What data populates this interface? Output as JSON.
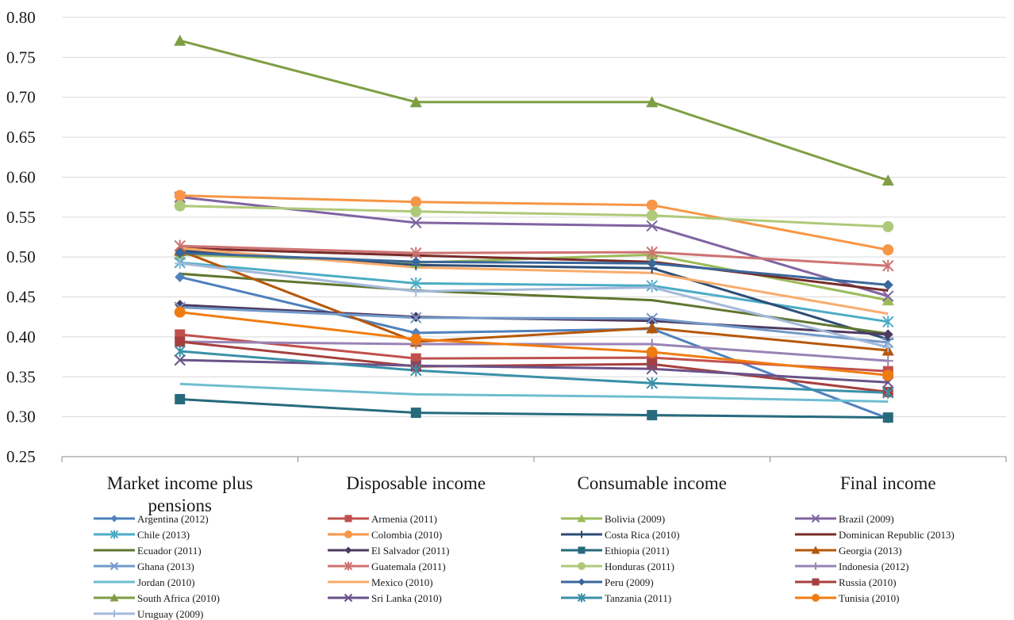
{
  "chart_data": {
    "type": "line",
    "title": "",
    "xlabel": "",
    "ylabel": "",
    "ylim": [
      0.25,
      0.8
    ],
    "yticks": [
      "0.25",
      "0.30",
      "0.35",
      "0.40",
      "0.45",
      "0.50",
      "0.55",
      "0.60",
      "0.65",
      "0.70",
      "0.75",
      "0.80"
    ],
    "categories": [
      "Market income plus pensions",
      "Disposable income",
      "Consumable income",
      "Final income"
    ],
    "grid": "horizontal",
    "legend_position": "bottom",
    "series": [
      {
        "name": "Argentina (2012)",
        "color": "#4f81bd",
        "marker": "diamond",
        "values": [
          0.475,
          0.405,
          0.41,
          0.298
        ]
      },
      {
        "name": "Armenia (2011)",
        "color": "#c0504d",
        "marker": "square",
        "values": [
          0.403,
          0.373,
          0.374,
          0.357
        ]
      },
      {
        "name": "Bolivia (2009)",
        "color": "#9bbb59",
        "marker": "triangle",
        "values": [
          0.503,
          0.493,
          0.503,
          0.446
        ]
      },
      {
        "name": "Brazil (2009)",
        "color": "#8064a2",
        "marker": "x",
        "values": [
          0.575,
          0.543,
          0.539,
          0.451
        ]
      },
      {
        "name": "Chile (2013)",
        "color": "#4bacc6",
        "marker": "star",
        "values": [
          0.493,
          0.467,
          0.464,
          0.419
        ]
      },
      {
        "name": "Colombia (2010)",
        "color": "#f79646",
        "marker": "circle",
        "values": [
          0.577,
          0.569,
          0.565,
          0.509
        ]
      },
      {
        "name": "Costa Rica (2010)",
        "color": "#2c4d75",
        "marker": "plus",
        "values": [
          0.508,
          0.49,
          0.486,
          0.397
        ]
      },
      {
        "name": "Dominican Republic (2013)",
        "color": "#772c2a",
        "marker": "none",
        "values": [
          0.511,
          0.502,
          0.494,
          0.458
        ]
      },
      {
        "name": "Ecuador (2011)",
        "color": "#5f7530",
        "marker": "none",
        "values": [
          0.479,
          0.458,
          0.446,
          0.404
        ]
      },
      {
        "name": "El Salvador (2011)",
        "color": "#4d3b62",
        "marker": "diamond",
        "values": [
          0.44,
          0.425,
          0.42,
          0.403
        ]
      },
      {
        "name": "Ethiopia (2011)",
        "color": "#276a7c",
        "marker": "square",
        "values": [
          0.322,
          0.305,
          0.302,
          0.299
        ]
      },
      {
        "name": "Georgia (2013)",
        "color": "#b65708",
        "marker": "triangle",
        "values": [
          0.508,
          0.394,
          0.411,
          0.383
        ]
      },
      {
        "name": "Ghana (2013)",
        "color": "#729aca",
        "marker": "x",
        "values": [
          0.437,
          0.424,
          0.423,
          0.393
        ]
      },
      {
        "name": "Guatemala (2011)",
        "color": "#cd7371",
        "marker": "star",
        "values": [
          0.514,
          0.505,
          0.506,
          0.489
        ]
      },
      {
        "name": "Honduras (2011)",
        "color": "#afc97a",
        "marker": "circle",
        "values": [
          0.564,
          0.557,
          0.552,
          0.538
        ]
      },
      {
        "name": "Indonesia (2012)",
        "color": "#9983b5",
        "marker": "plus",
        "values": [
          0.394,
          0.391,
          0.391,
          0.37
        ]
      },
      {
        "name": "Jordan (2010)",
        "color": "#6fbdd1",
        "marker": "none",
        "values": [
          0.341,
          0.328,
          0.325,
          0.319
        ]
      },
      {
        "name": "Mexico (2010)",
        "color": "#f9ab6b",
        "marker": "none",
        "values": [
          0.511,
          0.487,
          0.48,
          0.429
        ]
      },
      {
        "name": "Peru (2009)",
        "color": "#3a679c",
        "marker": "diamond",
        "values": [
          0.505,
          0.494,
          0.492,
          0.465
        ]
      },
      {
        "name": "Russia (2010)",
        "color": "#a5403e",
        "marker": "square",
        "values": [
          0.394,
          0.363,
          0.366,
          0.331
        ]
      },
      {
        "name": "South Africa (2010)",
        "color": "#7f9e44",
        "marker": "triangle",
        "values": [
          0.771,
          0.694,
          0.694,
          0.596
        ]
      },
      {
        "name": "Sri Lanka (2010)",
        "color": "#6a5289",
        "marker": "x",
        "values": [
          0.371,
          0.364,
          0.36,
          0.343
        ]
      },
      {
        "name": "Tanzania (2011)",
        "color": "#3a90a8",
        "marker": "star",
        "values": [
          0.382,
          0.358,
          0.342,
          0.33
        ]
      },
      {
        "name": "Tunisia (2010)",
        "color": "#f07c11",
        "marker": "circle",
        "values": [
          0.431,
          0.397,
          0.381,
          0.352
        ]
      },
      {
        "name": "Uruguay (2009)",
        "color": "#a3b9db",
        "marker": "plus",
        "values": [
          0.492,
          0.457,
          0.462,
          0.387
        ]
      }
    ]
  }
}
